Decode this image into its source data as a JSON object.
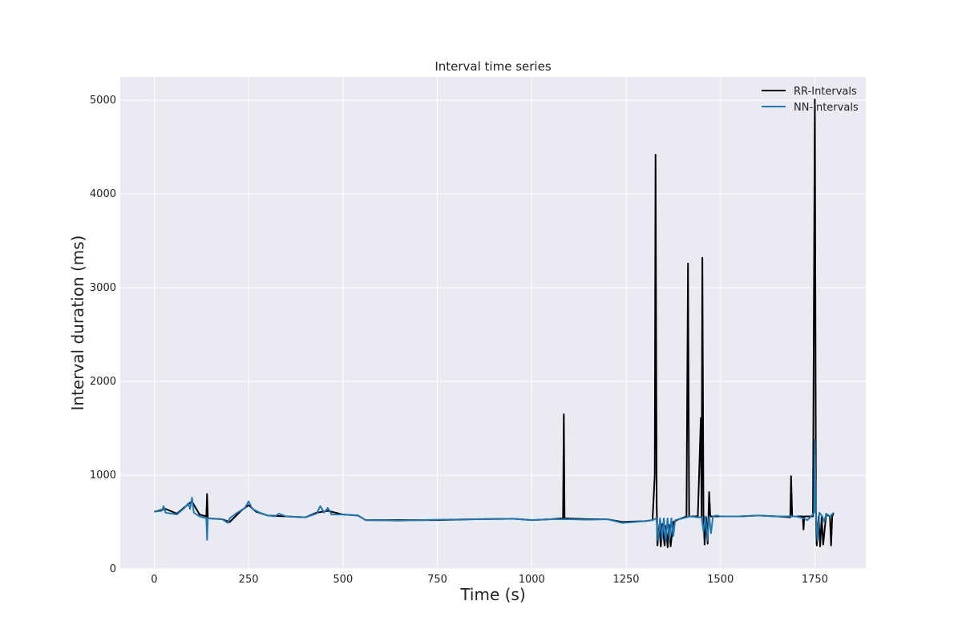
{
  "chart_data": {
    "type": "line",
    "title": "Interval time series",
    "xlabel": "Time (s)",
    "ylabel": "Interval duration (ms)",
    "xlim": [
      -90,
      1885
    ],
    "ylim": [
      0,
      5250
    ],
    "xticks": [
      0,
      250,
      500,
      750,
      1000,
      1250,
      1500,
      1750
    ],
    "yticks": [
      0,
      1000,
      2000,
      3000,
      4000,
      5000
    ],
    "grid": true,
    "legend_position": "top-right",
    "colors": {
      "plot_background": "#eaeaf2",
      "grid": "#ffffff"
    },
    "series": [
      {
        "name": "RR-Intervals",
        "color": "#000000",
        "points": [
          [
            0,
            610
          ],
          [
            30,
            640
          ],
          [
            60,
            590
          ],
          [
            90,
            690
          ],
          [
            100,
            720
          ],
          [
            120,
            580
          ],
          [
            138,
            560
          ],
          [
            140,
            800
          ],
          [
            142,
            540
          ],
          [
            180,
            530
          ],
          [
            200,
            500
          ],
          [
            230,
            620
          ],
          [
            250,
            680
          ],
          [
            270,
            610
          ],
          [
            300,
            570
          ],
          [
            350,
            560
          ],
          [
            400,
            550
          ],
          [
            430,
            600
          ],
          [
            460,
            620
          ],
          [
            500,
            580
          ],
          [
            540,
            570
          ],
          [
            560,
            520
          ],
          [
            650,
            520
          ],
          [
            750,
            520
          ],
          [
            850,
            530
          ],
          [
            950,
            535
          ],
          [
            1000,
            520
          ],
          [
            1050,
            530
          ],
          [
            1083,
            540
          ],
          [
            1085,
            1650
          ],
          [
            1087,
            540
          ],
          [
            1150,
            530
          ],
          [
            1200,
            530
          ],
          [
            1240,
            500
          ],
          [
            1300,
            510
          ],
          [
            1320,
            520
          ],
          [
            1326,
            1000
          ],
          [
            1328,
            4420
          ],
          [
            1331,
            700
          ],
          [
            1333,
            250
          ],
          [
            1338,
            470
          ],
          [
            1342,
            240
          ],
          [
            1346,
            480
          ],
          [
            1352,
            250
          ],
          [
            1356,
            460
          ],
          [
            1360,
            230
          ],
          [
            1364,
            470
          ],
          [
            1368,
            240
          ],
          [
            1375,
            500
          ],
          [
            1390,
            530
          ],
          [
            1410,
            560
          ],
          [
            1414,
            3260
          ],
          [
            1417,
            560
          ],
          [
            1440,
            560
          ],
          [
            1448,
            1610
          ],
          [
            1450,
            560
          ],
          [
            1452,
            3320
          ],
          [
            1455,
            560
          ],
          [
            1458,
            260
          ],
          [
            1462,
            550
          ],
          [
            1466,
            270
          ],
          [
            1470,
            820
          ],
          [
            1473,
            560
          ],
          [
            1500,
            560
          ],
          [
            1550,
            560
          ],
          [
            1600,
            570
          ],
          [
            1650,
            560
          ],
          [
            1685,
            550
          ],
          [
            1687,
            990
          ],
          [
            1690,
            560
          ],
          [
            1718,
            560
          ],
          [
            1720,
            420
          ],
          [
            1722,
            560
          ],
          [
            1745,
            560
          ],
          [
            1750,
            5010
          ],
          [
            1753,
            560
          ],
          [
            1755,
            250
          ],
          [
            1760,
            560
          ],
          [
            1764,
            240
          ],
          [
            1768,
            550
          ],
          [
            1772,
            260
          ],
          [
            1780,
            580
          ],
          [
            1790,
            560
          ],
          [
            1793,
            250
          ],
          [
            1796,
            560
          ],
          [
            1800,
            600
          ]
        ]
      },
      {
        "name": "NN-Intervals",
        "color": "#1f77b4",
        "points": [
          [
            0,
            610
          ],
          [
            20,
            620
          ],
          [
            25,
            670
          ],
          [
            30,
            600
          ],
          [
            60,
            580
          ],
          [
            80,
            650
          ],
          [
            90,
            700
          ],
          [
            95,
            640
          ],
          [
            100,
            760
          ],
          [
            105,
            600
          ],
          [
            120,
            560
          ],
          [
            138,
            540
          ],
          [
            140,
            310
          ],
          [
            142,
            540
          ],
          [
            180,
            530
          ],
          [
            195,
            490
          ],
          [
            200,
            540
          ],
          [
            220,
            600
          ],
          [
            240,
            650
          ],
          [
            250,
            720
          ],
          [
            260,
            640
          ],
          [
            280,
            600
          ],
          [
            300,
            570
          ],
          [
            320,
            560
          ],
          [
            330,
            590
          ],
          [
            350,
            560
          ],
          [
            400,
            550
          ],
          [
            430,
            590
          ],
          [
            440,
            670
          ],
          [
            450,
            600
          ],
          [
            460,
            650
          ],
          [
            470,
            580
          ],
          [
            500,
            580
          ],
          [
            540,
            570
          ],
          [
            560,
            520
          ],
          [
            650,
            515
          ],
          [
            750,
            525
          ],
          [
            850,
            530
          ],
          [
            950,
            535
          ],
          [
            1000,
            520
          ],
          [
            1050,
            530
          ],
          [
            1100,
            530
          ],
          [
            1150,
            525
          ],
          [
            1200,
            530
          ],
          [
            1240,
            490
          ],
          [
            1300,
            510
          ],
          [
            1320,
            520
          ],
          [
            1330,
            540
          ],
          [
            1335,
            300
          ],
          [
            1340,
            540
          ],
          [
            1345,
            320
          ],
          [
            1350,
            540
          ],
          [
            1355,
            300
          ],
          [
            1360,
            540
          ],
          [
            1365,
            310
          ],
          [
            1370,
            540
          ],
          [
            1375,
            350
          ],
          [
            1380,
            520
          ],
          [
            1400,
            540
          ],
          [
            1420,
            560
          ],
          [
            1440,
            550
          ],
          [
            1450,
            550
          ],
          [
            1455,
            400
          ],
          [
            1460,
            560
          ],
          [
            1465,
            300
          ],
          [
            1470,
            560
          ],
          [
            1475,
            380
          ],
          [
            1480,
            560
          ],
          [
            1490,
            570
          ],
          [
            1500,
            560
          ],
          [
            1550,
            560
          ],
          [
            1600,
            570
          ],
          [
            1650,
            560
          ],
          [
            1700,
            560
          ],
          [
            1720,
            540
          ],
          [
            1730,
            520
          ],
          [
            1740,
            560
          ],
          [
            1748,
            600
          ],
          [
            1750,
            1380
          ],
          [
            1753,
            560
          ],
          [
            1757,
            300
          ],
          [
            1762,
            600
          ],
          [
            1770,
            560
          ],
          [
            1775,
            500
          ],
          [
            1780,
            590
          ],
          [
            1790,
            560
          ],
          [
            1800,
            600
          ]
        ]
      }
    ]
  }
}
